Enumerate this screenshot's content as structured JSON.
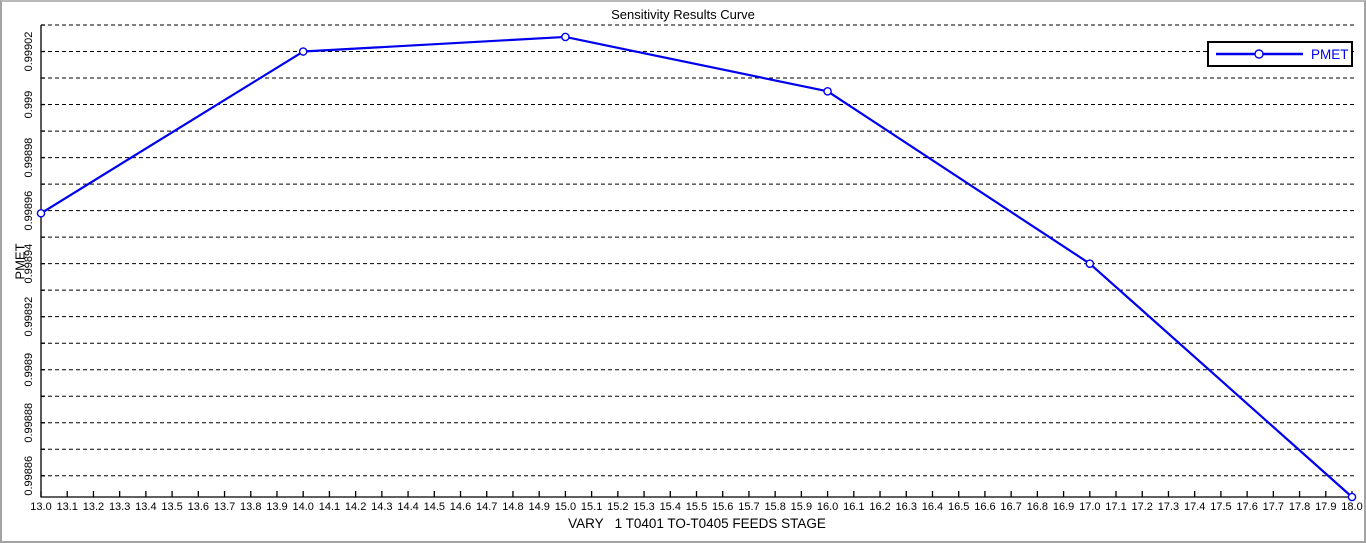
{
  "chart_data": {
    "type": "line",
    "title": "Sensitivity Results Curve",
    "xlabel": "VARY   1 T0401 TO-T0405 FEEDS STAGE",
    "ylabel": "PMET",
    "series": [
      {
        "name": "PMET",
        "x": [
          13.0,
          14.0,
          15.0,
          16.0,
          17.0,
          18.0
        ],
        "y": [
          0.998959,
          0.99902,
          0.9990255,
          0.999005,
          0.99894,
          0.998852
        ],
        "color": "#0000EE",
        "marker": "circle",
        "marker_face": "#ffffff"
      }
    ],
    "x_axis": {
      "min": 13.0,
      "max": 18.0,
      "tick_step": 0.1,
      "tick_decimals": 1,
      "first_tick_label": "13.0",
      "last_tick_label": "18.0"
    },
    "y_axis": {
      "view_min": 0.998852,
      "view_max": 0.99903,
      "grid_min": 0.99886,
      "grid_max": 0.99903,
      "grid_step": 1e-05,
      "label_min": 0.99886,
      "label_max": 0.99902,
      "label_step": 2e-05,
      "tick_labels": [
        "0.99886",
        "0.99888",
        "0.9989",
        "0.99892",
        "0.99894",
        "0.99896",
        "0.99898",
        "0.999",
        "0.99902"
      ]
    },
    "grid": {
      "horizontal": "dashed",
      "vertical": "none"
    },
    "legend": {
      "position": "top-right",
      "entries": [
        "PMET"
      ]
    }
  },
  "colors": {
    "line": "#0000EE",
    "grid": "#000000",
    "axis": "#000000",
    "text": "#000000",
    "window_border": "#a3a3a3",
    "background": "#ffffff"
  }
}
